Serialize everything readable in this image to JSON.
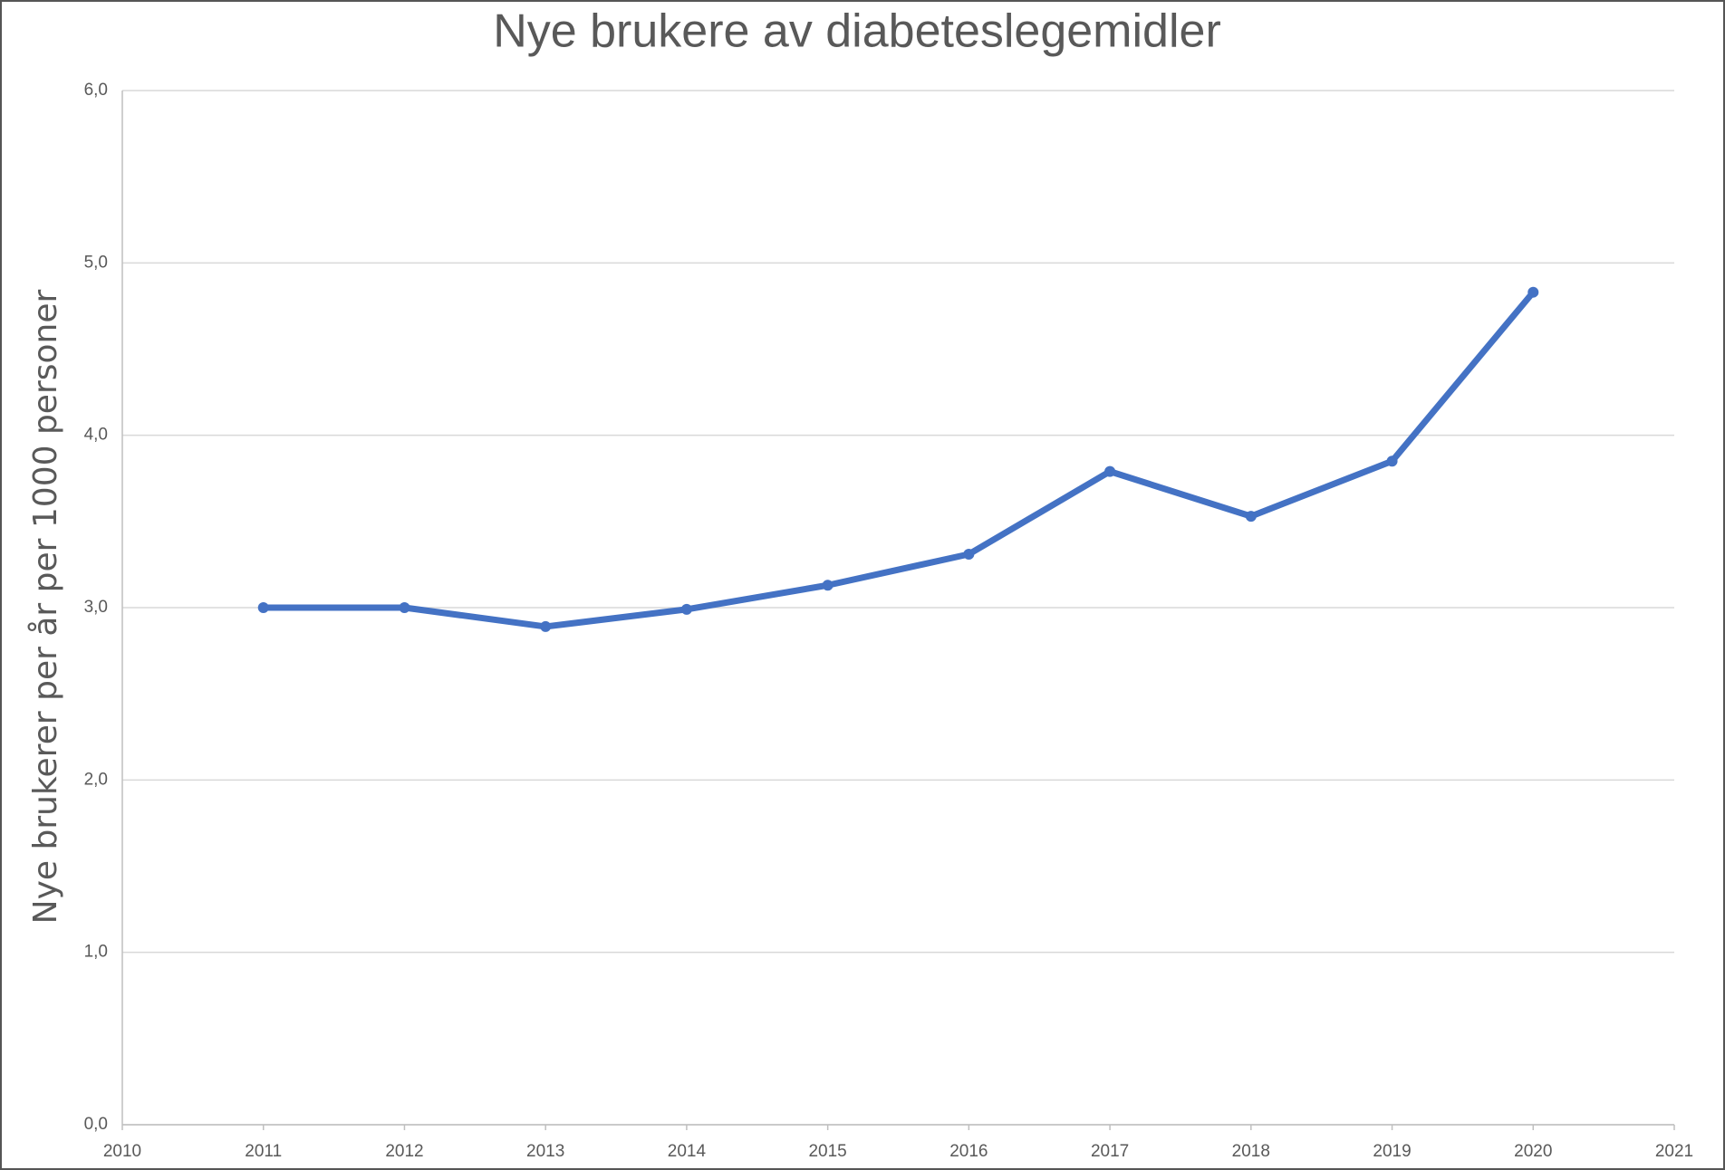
{
  "chart_data": {
    "type": "line",
    "title": "Nye brukere av diabeteslegemidler",
    "ylabel": "Nye brukerer per år per 1000 personer",
    "x": [
      2011,
      2012,
      2013,
      2014,
      2015,
      2016,
      2017,
      2018,
      2019,
      2020
    ],
    "values": [
      3.0,
      3.0,
      2.89,
      2.99,
      3.13,
      3.31,
      3.79,
      3.53,
      3.85,
      4.83
    ],
    "color": "#4472c4",
    "xlim": [
      2010,
      2021
    ],
    "xticks": [
      2010,
      2011,
      2012,
      2013,
      2014,
      2015,
      2016,
      2017,
      2018,
      2019,
      2020,
      2021
    ],
    "ylim": [
      0,
      6
    ],
    "yticks": [
      {
        "value": 0,
        "label": "0,0"
      },
      {
        "value": 1,
        "label": "1,0"
      },
      {
        "value": 2,
        "label": "2,0"
      },
      {
        "value": 3,
        "label": "3,0"
      },
      {
        "value": 4,
        "label": "4,0"
      },
      {
        "value": 5,
        "label": "5,0"
      },
      {
        "value": 6,
        "label": "6,0"
      }
    ],
    "grid": true
  }
}
